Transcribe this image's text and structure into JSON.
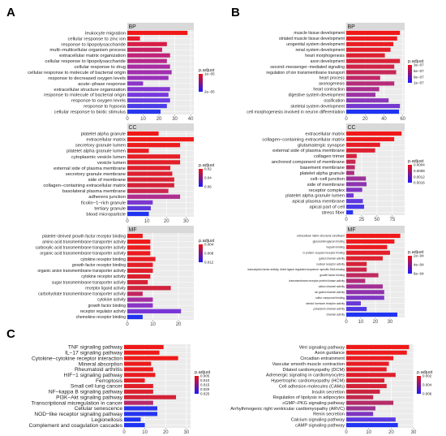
{
  "panel_labels": [
    "A",
    "B",
    "C"
  ],
  "chart_data": [
    {
      "id": "A-BP",
      "type": "bar",
      "facet": "BP",
      "categories": [
        "leukocyte migration",
        "cellular response to zinc ion",
        "response to lipopolysaccharide",
        "multi−multicellular organism process",
        "extracellular matrix organization",
        "cellular response to lipopolysaccharide",
        "cellular response to drug",
        "cellular response to molecule of bacterial origin",
        "response to decreased oxygen levels",
        "acute−phase response",
        "extracellular structure organization",
        "response to molecule of bacterial origin",
        "response to oxygen levels",
        "response to hypoxia",
        "cellular response to biotic stimulus"
      ],
      "values": [
        38,
        8,
        25,
        22,
        27,
        25,
        27,
        28,
        26,
        10,
        27,
        26,
        27,
        25,
        21
      ],
      "colors": [
        "#f01818",
        "#e81a2a",
        "#d81e48",
        "#c82266",
        "#c02478",
        "#b8288a",
        "#a82ca2",
        "#a22eae",
        "#9a30ba",
        "#8c34c8",
        "#8436d2",
        "#7838dc",
        "#6a3ce2",
        "#4a3ce8",
        "#2838f0"
      ],
      "xlim": [
        0,
        42
      ],
      "xticks": [
        0,
        10,
        20,
        30,
        40
      ],
      "legend": {
        "title": "p.adjust",
        "labels": [
          "1e−05",
          "2e−05"
        ],
        "colors": [
          "#f01010",
          "#1a1aff"
        ]
      }
    },
    {
      "id": "A-CC",
      "type": "bar",
      "facet": "CC",
      "categories": [
        "platelet alpha granule",
        "extracellular matrix",
        "secretory granule lumen",
        "platelet alpha granule lumen",
        "cytoplasmic vesicle lumen",
        "vesicle lumen",
        "external side of plasma membrane",
        "secretory granule membrane",
        "side of membrane",
        "collagen−containing extracellular matrix",
        "basolateral plasma membrane",
        "adherens junction",
        "ficolin−1−rich granule",
        "tertiary granule",
        "blood microparticle"
      ],
      "values": [
        16,
        34,
        27,
        11,
        27,
        27,
        22,
        23,
        24,
        24,
        21,
        27,
        13,
        12,
        11
      ],
      "colors": [
        "#f01818",
        "#f01a1a",
        "#ee1c1e",
        "#ea1c22",
        "#e61e26",
        "#e41e28",
        "#e01e2c",
        "#de2030",
        "#dc2034",
        "#d62238",
        "#cc2650",
        "#b02e90",
        "#7a38d0",
        "#5a3ae0",
        "#2034f0"
      ],
      "xlim": [
        0,
        34
      ],
      "xticks": [
        0,
        10,
        20,
        30
      ],
      "legend": {
        "title": "p.adjust",
        "labels": [
          "0.02",
          "0.04",
          "0.06"
        ],
        "colors": [
          "#f01010",
          "#1a1aff"
        ]
      }
    },
    {
      "id": "A-MF",
      "type": "bar",
      "facet": "MF",
      "categories": [
        "platelet−derived growth factor receptor binding",
        "amino acid transmembrane transporter activity",
        "carboxylic acid transmembrane transporter activity",
        "organic acid transmembrane transporter activity",
        "cytokine receptor binding",
        "growth factor receptor binding",
        "organic anion transmembrane transporter activity",
        "cytokine receptor activity",
        "sugar transmembrane transporter activity",
        "receptor ligand activity",
        "carbohydrate transmembrane transporter activity",
        "cytokine activity",
        "growth factor binding",
        "receptor regulator activity",
        "chemokine receptor binding"
      ],
      "values": [
        6,
        9,
        9,
        9,
        11,
        10,
        10,
        9,
        8,
        17,
        6,
        10,
        10,
        21,
        6
      ],
      "colors": [
        "#f01818",
        "#f01818",
        "#ee1a1c",
        "#ec1a20",
        "#e81c24",
        "#e41e28",
        "#e01e2c",
        "#dc2030",
        "#d62236",
        "#d0243c",
        "#c42660",
        "#a42ea0",
        "#8a34c6",
        "#7836d6",
        "#2034f0"
      ],
      "xlim": [
        0,
        26
      ],
      "xticks": [
        0,
        10,
        20
      ],
      "legend": {
        "title": "p.adjust",
        "labels": [
          "0.004",
          "0.008",
          "0.012"
        ],
        "colors": [
          "#f01010",
          "#1a1aff"
        ]
      }
    },
    {
      "id": "B-BP",
      "type": "bar",
      "facet": "BP",
      "categories": [
        "muscle tissue development",
        "striated muscle tissue development",
        "urogenital system development",
        "renal system development",
        "heart morphogenesis",
        "axon development",
        "second−messenger−mediated signaling",
        "regulation of ion transmembrane transport",
        "heart process",
        "axonogenesis",
        "heart contraction",
        "digestive system development",
        "ossification",
        "skeletal system development",
        "cell morphogenesis involved in neuron differentiation"
      ],
      "values": [
        57,
        54,
        50,
        47,
        41,
        57,
        51,
        53,
        36,
        51,
        35,
        31,
        45,
        57,
        56
      ],
      "colors": [
        "#f01818",
        "#ee1a1e",
        "#ea1c24",
        "#e41e2a",
        "#de2032",
        "#d8223a",
        "#d02446",
        "#c82656",
        "#c02868",
        "#b62c7a",
        "#aa2e8e",
        "#9e32a4",
        "#8c36ba",
        "#7438d0",
        "#1e34f2"
      ],
      "xlim": [
        0,
        62
      ],
      "xticks": [
        0,
        20,
        40,
        60
      ],
      "legend": {
        "title": "p.adjust",
        "labels": [
          "3e−07",
          "6e−07",
          "9e−07",
          "1e−07"
        ],
        "colors": [
          "#f01010",
          "#1a1aff"
        ]
      }
    },
    {
      "id": "B-CC",
      "type": "bar",
      "facet": "CC",
      "categories": [
        "extracellular matrix",
        "collagen−containing extracellular matrix",
        "glutamatergic synapse",
        "external side of plasma membrane",
        "collagen trimer",
        "anchored component of membrane",
        "basement membrane",
        "platelet alpha granule",
        "cell−cell junction",
        "side of membrane",
        "receptor complex",
        "platelet alpha granule lumen",
        "apical plasma membrane",
        "apical part of cell",
        "stress fiber"
      ],
      "values": [
        90,
        78,
        55,
        47,
        17,
        15,
        14,
        13,
        32,
        33,
        26,
        12,
        27,
        29,
        11
      ],
      "colors": [
        "#f01818",
        "#ee1a1c",
        "#e81c26",
        "#de2030",
        "#d4223e",
        "#c8264e",
        "#ba2a66",
        "#aa2e80",
        "#9c3298",
        "#8c34b0",
        "#8036c4",
        "#7238d4",
        "#6238e0",
        "#4a38ea",
        "#2a34f2"
      ],
      "xlim": [
        0,
        95
      ],
      "xticks": [
        0,
        25,
        50,
        75
      ],
      "legend": {
        "title": "p.adjust",
        "labels": [
          "0.0004",
          "0.0008",
          "0.0012",
          "0.0016"
        ],
        "colors": [
          "#f01010",
          "#1a1aff"
        ]
      }
    },
    {
      "id": "B-MF",
      "type": "bar",
      "facet": "MF",
      "categories": [
        "extracellular matrix structural constituent",
        "glycosaminoglycan binding",
        "heparin binding",
        "G protein−coupled receptor binding",
        "gated channel activity",
        "nuclear receptor activity",
        "transcription factor activity, direct ligand regulated sequence−specific DNA binding",
        "growth factor binding",
        "transmembrane receptor protein kinase activity",
        "cation channel activity",
        "ion gated channel activity",
        "sulfur compound binding",
        "steroid hormone receptor activity",
        "potassium channel activity",
        "channel activity"
      ],
      "values": [
        37,
        33,
        28,
        30,
        25,
        14,
        14,
        22,
        13,
        25,
        26,
        26,
        10,
        14,
        35
      ],
      "colors": [
        "#f01818",
        "#ee1a1c",
        "#ea1c22",
        "#e41e28",
        "#de2030",
        "#d6223a",
        "#cc2448",
        "#c02860",
        "#b22c7a",
        "#a23094",
        "#9032ac",
        "#7e36c4",
        "#6a38d6",
        "#5238e4",
        "#2034f2"
      ],
      "xlim": [
        0,
        40
      ],
      "xticks": [
        0,
        10,
        20,
        30
      ],
      "legend": {
        "title": "p.adjust",
        "labels": [
          "2e−04",
          "4e−04",
          "6e−04"
        ],
        "colors": [
          "#f01010",
          "#1a1aff"
        ]
      }
    },
    {
      "id": "C-left",
      "type": "bar",
      "facet": "",
      "categories": [
        "TNF signaling pathway",
        "IL−17 signaling pathway",
        "Cytokine−cytokine receptor interaction",
        "Mineral absorption",
        "Rheumatoid arthritis",
        "HIF−1 signaling pathway",
        "Ferroptosis",
        "Small cell lung cancer",
        "NF−kappa B signaling pathway",
        "PI3K−Akt signaling pathway",
        "Transcriptional misregulation in cancer",
        "Cellular senescence",
        "NOD−like receptor signaling pathway",
        "Legionellosis",
        "Complement and coagulation cascades"
      ],
      "values": [
        19,
        17,
        26,
        13,
        14,
        15,
        10,
        14,
        14,
        25,
        14,
        16,
        16,
        8,
        10
      ],
      "colors": [
        "#f01818",
        "#f01818",
        "#f01a1a",
        "#ee1a1c",
        "#ec1a1e",
        "#ea1c20",
        "#e61c24",
        "#e21e28",
        "#dc202e",
        "#d22238",
        "#b82a6c",
        "#2a34ee",
        "#2434f0",
        "#2034f2",
        "#1e34f4"
      ],
      "xlim": [
        0,
        32
      ],
      "xticks": [
        0,
        10,
        20,
        30
      ],
      "legend": {
        "title": "p.adjust",
        "labels": [
          "0.005",
          "0.010",
          "0.015",
          "0.020",
          "0.025"
        ],
        "colors": [
          "#f01010",
          "#1a1aff"
        ]
      }
    },
    {
      "id": "C-right",
      "type": "bar",
      "facet": "",
      "categories": [
        "Wnt signaling pathway",
        "Axon guidance",
        "Circadian entrainment",
        "Vascular smooth muscle contraction",
        "Dilated cardiomyopathy (DCM)",
        "Adrenergic signaling in cardiomyocytes",
        "Hypertrophic cardiomyopathy (HCM)",
        "Cell adhesion molecules (CAMs)",
        "Insulin secretion",
        "Regulation of lipolysis in adipocytes",
        "cGMP−PKG signaling pathway",
        "Arrhythmogenic right ventricular cardiomyopathy (ARVC)",
        "Renin secretion",
        "Calcium signaling pathway",
        "cAMP signaling pathway"
      ],
      "values": [
        28,
        27,
        21,
        19,
        18,
        22,
        17,
        18,
        15,
        12,
        21,
        13,
        12,
        22,
        23
      ],
      "colors": [
        "#f01818",
        "#ee1a1c",
        "#ec1a20",
        "#e81c24",
        "#e41e28",
        "#e01e2c",
        "#da2032",
        "#d42238",
        "#cc2440",
        "#c2284e",
        "#b42c66",
        "#9c3292",
        "#7e36c0",
        "#5a38e0",
        "#2234f2"
      ],
      "xlim": [
        0,
        30
      ],
      "xticks": [
        0,
        10,
        20,
        30
      ],
      "legend": {
        "title": "p.adjust",
        "labels": [
          "0.002",
          "0.004",
          "0.006"
        ],
        "colors": [
          "#f01010",
          "#1a1aff"
        ]
      }
    }
  ]
}
